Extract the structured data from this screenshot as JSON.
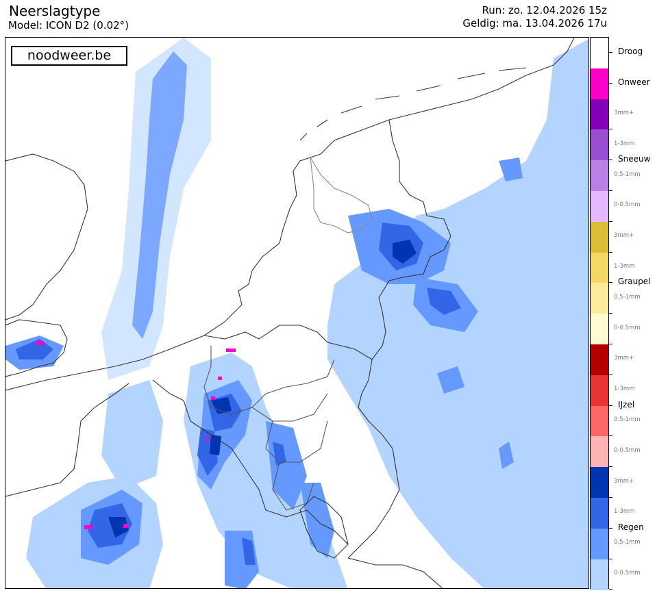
{
  "header": {
    "title": "Neerslagtype",
    "model": "Model: ICON D2 (0.02°)",
    "run": "Run: zo. 12.04.2026 15z",
    "valid": "Geldig: ma. 13.04.2026 17u"
  },
  "brand": "noodweer.be",
  "legend": {
    "categories": [
      {
        "id": "droog",
        "label": "Droog",
        "colors": [
          "#ffffff"
        ],
        "subs": []
      },
      {
        "id": "onweer",
        "label": "Onweer",
        "colors": [
          "#ff00c8"
        ],
        "subs": []
      },
      {
        "id": "sneeuw",
        "label": "Sneeuw",
        "colors": [
          "#8400b8",
          "#9a4fd0",
          "#bb7fe6",
          "#e6b8ff"
        ],
        "subs": [
          "3mm+",
          "1-3mm",
          "0.5-1mm",
          "0-0.5mm"
        ]
      },
      {
        "id": "graupel",
        "label": "Graupel",
        "colors": [
          "#dabf35",
          "#f3d964",
          "#fdeb9d",
          "#fffad2"
        ],
        "subs": [
          "3mm+",
          "1-3mm",
          "0.5-1mm",
          "0-0.5mm"
        ]
      },
      {
        "id": "ijzel",
        "label": "IJzel",
        "colors": [
          "#b50000",
          "#e73535",
          "#ff6766",
          "#ffb3b3"
        ],
        "subs": [
          "3mm+",
          "1-3mm",
          "0.5-1mm",
          "0-0.5mm"
        ]
      },
      {
        "id": "regen",
        "label": "Regen",
        "colors": [
          "#0034b0",
          "#3366e6",
          "#6699ff",
          "#b3d4ff"
        ],
        "subs": [
          "3mm+",
          "1-3mm",
          "0.5-1mm",
          "0-0.5mm"
        ]
      }
    ]
  },
  "map_colors": {
    "rain_light": "#b3d4ff",
    "rain_medium": "#6699ff",
    "rain_heavy": "#3366e6",
    "rain_extreme": "#0034b0",
    "thunder": "#ff00c8",
    "border": "#000000"
  }
}
